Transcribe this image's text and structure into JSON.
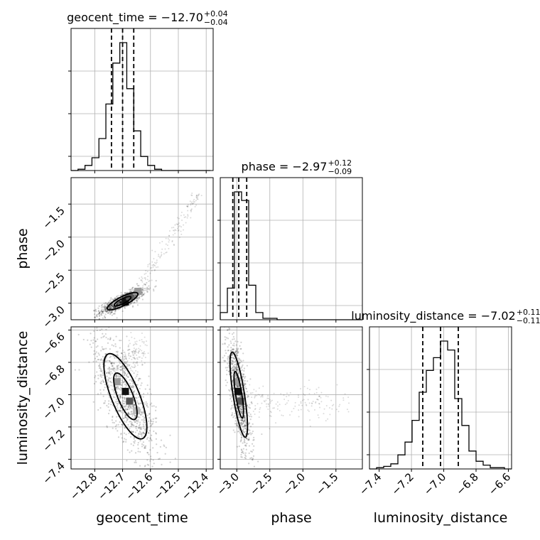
{
  "chart_data": {
    "type": "corner",
    "parameters": [
      "geocent_time",
      "phase",
      "luminosity_distance"
    ],
    "grid": true,
    "titles": [
      {
        "param": "geocent_time",
        "text": "geocent_time = −12.70",
        "sup": "+0.04",
        "sub": "−0.04",
        "median": -12.7,
        "lo": -12.74,
        "hi": -12.66
      },
      {
        "param": "phase",
        "text": "phase = −2.97",
        "sup": "+0.12",
        "sub": "−0.09",
        "median": -2.97,
        "lo": -3.06,
        "hi": -2.85
      },
      {
        "param": "luminosity_distance",
        "text": "luminosity_distance = −7.02",
        "sup": "+0.11",
        "sub": "−0.11",
        "median": -7.02,
        "lo": -7.13,
        "hi": -6.91
      }
    ],
    "ranges": {
      "geocent_time": [
        -12.885,
        -12.375
      ],
      "phase": [
        -3.25,
        -1.1
      ],
      "luminosity_distance": [
        -7.46,
        -6.58
      ]
    },
    "ticks": {
      "geocent_time": {
        "values": [
          -12.8,
          -12.7,
          -12.6,
          -12.5,
          -12.4
        ],
        "labels": [
          "−12.8",
          "−12.7",
          "−12.6",
          "−12.5",
          "−12.4"
        ]
      },
      "phase_y": {
        "values": [
          -3.0,
          -2.5,
          -2.0,
          -1.5
        ],
        "labels": [
          "−3.0",
          "−2.5",
          "−2.0",
          "−1.5"
        ]
      },
      "phase_x": {
        "values": [
          -3.0,
          -2.5,
          -2.0,
          -1.5
        ],
        "labels": [
          "−3.0",
          "−2.5",
          "−2.0",
          "−1.5"
        ]
      },
      "luminosity_distance_y": {
        "values": [
          -6.6,
          -6.8,
          -7.0,
          -7.2,
          -7.4
        ],
        "labels": [
          "−6.6",
          "−6.8",
          "−7.0",
          "−7.2",
          "−7.4"
        ]
      },
      "luminosity_distance_x": {
        "values": [
          -7.4,
          -7.2,
          -7.0,
          -6.8,
          -6.6
        ],
        "labels": [
          "−7.4",
          "−7.2",
          "−7.0",
          "−6.8",
          "−6.6"
        ]
      }
    },
    "histograms": {
      "geocent_time": {
        "edges": [
          -12.885,
          -12.86,
          -12.835,
          -12.81,
          -12.785,
          -12.76,
          -12.735,
          -12.71,
          -12.685,
          -12.66,
          -12.635,
          -12.61,
          -12.585,
          -12.56,
          -12.535,
          -12.51,
          -12.485,
          -12.46,
          -12.435,
          -12.41,
          -12.385
        ],
        "counts": [
          0.0,
          0.01,
          0.04,
          0.1,
          0.25,
          0.52,
          0.84,
          1.0,
          0.64,
          0.31,
          0.11,
          0.04,
          0.01,
          0.0,
          0.0,
          0.0,
          0.0,
          0.0,
          0.0,
          0.0
        ]
      },
      "phase": {
        "edges": [
          -3.25,
          -3.1425,
          -3.035,
          -2.9275,
          -2.82,
          -2.7125,
          -2.605,
          -2.4975,
          -2.39,
          -2.2825,
          -2.175,
          -2.0675,
          -1.96,
          -1.8525,
          -1.745,
          -1.6375,
          -1.53,
          -1.4225,
          -1.315,
          -1.2075,
          -1.1
        ],
        "counts": [
          0.05,
          0.22,
          0.89,
          0.83,
          0.24,
          0.05,
          0.01,
          0.01,
          0.0,
          0.0,
          0.0,
          0.0,
          0.0,
          0.0,
          0.0,
          0.0,
          0.0,
          0.0,
          0.0,
          0.0
        ]
      },
      "luminosity_distance": {
        "edges": [
          -7.46,
          -7.416,
          -7.372,
          -7.328,
          -7.284,
          -7.24,
          -7.196,
          -7.152,
          -7.108,
          -7.064,
          -7.02,
          -6.976,
          -6.932,
          -6.888,
          -6.844,
          -6.8,
          -6.756,
          -6.712,
          -6.668,
          -6.624,
          -6.58
        ],
        "counts": [
          0.0,
          0.01,
          0.02,
          0.04,
          0.11,
          0.21,
          0.38,
          0.6,
          0.77,
          0.87,
          1.0,
          0.93,
          0.55,
          0.34,
          0.14,
          0.06,
          0.03,
          0.01,
          0.01,
          0.0
        ]
      }
    },
    "pairs": [
      {
        "x": "geocent_time",
        "y": "phase",
        "center": [
          -12.7,
          -2.97
        ],
        "sigma": [
          0.025,
          0.06
        ],
        "corr": 0.82,
        "tail": {
          "from": [
            -12.65,
            -2.85
          ],
          "to": [
            -12.42,
            -1.3
          ]
        },
        "density_peaks": [
          [
            -12.69,
            -2.98
          ],
          [
            -12.675,
            -2.9
          ],
          [
            -12.645,
            -2.82
          ]
        ]
      },
      {
        "x": "geocent_time",
        "y": "luminosity_distance",
        "center": [
          -12.69,
          -7.01
        ],
        "sigma": [
          0.035,
          0.12
        ],
        "corr": -0.72,
        "tail": {
          "from": [
            -12.72,
            -6.85
          ],
          "to": [
            -12.63,
            -6.69
          ]
        },
        "density_peaks": [
          [
            -12.69,
            -6.98
          ],
          [
            -12.675,
            -7.04
          ],
          [
            -12.72,
            -6.92
          ],
          [
            -12.65,
            -7.1
          ]
        ]
      },
      {
        "x": "phase",
        "y": "luminosity_distance",
        "center": [
          -2.97,
          -7.0
        ],
        "sigma": [
          0.06,
          0.12
        ],
        "corr": -0.75,
        "tail": {
          "from": [
            -2.85,
            -7.05
          ],
          "to": [
            -1.3,
            -7.05
          ]
        },
        "density_peaks": [
          [
            -2.98,
            -6.98
          ],
          [
            -2.94,
            -7.04
          ],
          [
            -3.0,
            -6.92
          ]
        ]
      }
    ]
  }
}
